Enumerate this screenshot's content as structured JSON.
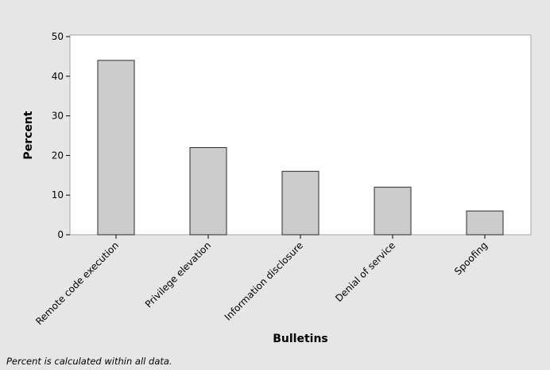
{
  "chart_data": {
    "type": "bar",
    "categories": [
      "Remote code execution",
      "Privilege elevation",
      "Information disclosure",
      "Denial of service",
      "Spoofing"
    ],
    "values": [
      44,
      22,
      16,
      12,
      6
    ],
    "xlabel": "Bulletins",
    "ylabel": "Percent",
    "ylim": [
      0,
      50
    ],
    "yticks": [
      0,
      10,
      20,
      30,
      40,
      50
    ],
    "grid": false,
    "bar_color": "#cccccc",
    "bar_edge_color": "#2b2b2b",
    "background_color": "#e6e6e6",
    "plot_background_color": "#ffffff"
  },
  "footnote": "Percent is calculated within all data."
}
